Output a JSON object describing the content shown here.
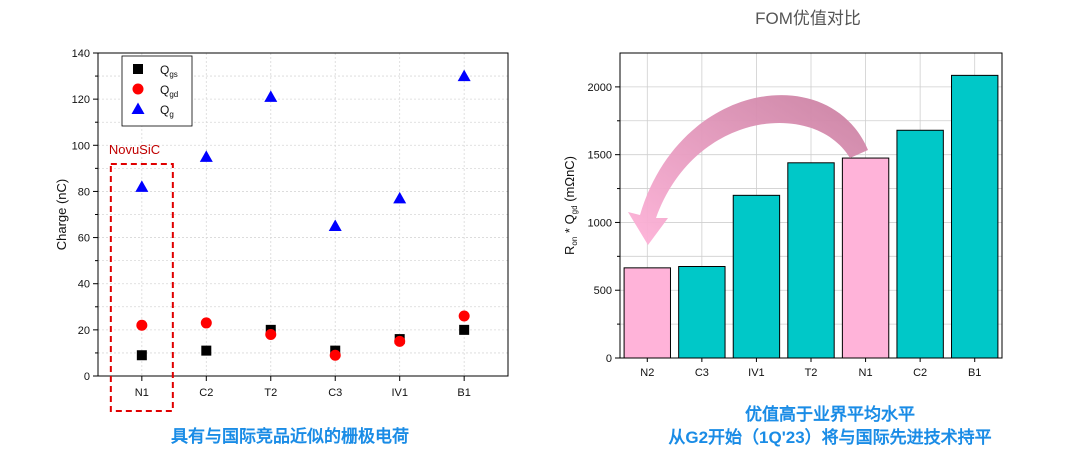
{
  "left_caption": "具有与国际竞品近似的栅极电荷",
  "right_caption_1": "优值高于业界平均水平",
  "right_caption_2": "从G2开始（1Q'23）将与国际先进技术持平",
  "highlight_label": "NovuSiC",
  "chart_data": [
    {
      "type": "scatter",
      "title": "",
      "xlabel": "",
      "ylabel": "Charge (nC)",
      "ylim": [
        0,
        140
      ],
      "yticks": [
        0,
        20,
        40,
        60,
        80,
        100,
        120,
        140
      ],
      "categories": [
        "N1",
        "C2",
        "T2",
        "C3",
        "IV1",
        "B1"
      ],
      "grid": true,
      "legend_placement": "top-left",
      "series": [
        {
          "name": "Q",
          "sub": "gs",
          "marker": "square",
          "color": "#000000",
          "values": [
            9,
            11,
            20,
            11,
            16,
            20
          ]
        },
        {
          "name": "Q",
          "sub": "gd",
          "marker": "circle",
          "color": "#ff0000",
          "values": [
            22,
            23,
            18,
            9,
            15,
            26
          ]
        },
        {
          "name": "Q",
          "sub": "g",
          "marker": "triangle",
          "color": "#0000ff",
          "values": [
            82,
            95,
            121,
            65,
            77,
            130
          ]
        }
      ]
    },
    {
      "type": "bar",
      "title": "FOM优值对比",
      "xlabel": "",
      "ylabel_parts": [
        "R",
        "on",
        " * Q",
        "gd",
        " (mΩnC)"
      ],
      "ylim": [
        0,
        2250
      ],
      "yticks": [
        0,
        500,
        1000,
        1500,
        2000
      ],
      "categories": [
        "N2",
        "C3",
        "IV1",
        "T2",
        "N1",
        "C2",
        "B1"
      ],
      "values": [
        665,
        675,
        1200,
        1440,
        1475,
        1680,
        2085
      ],
      "colors": [
        "#ffb3d9",
        "#00c8c8",
        "#00c8c8",
        "#00c8c8",
        "#ffb3d9",
        "#00c8c8",
        "#00c8c8"
      ],
      "grid": true
    }
  ]
}
